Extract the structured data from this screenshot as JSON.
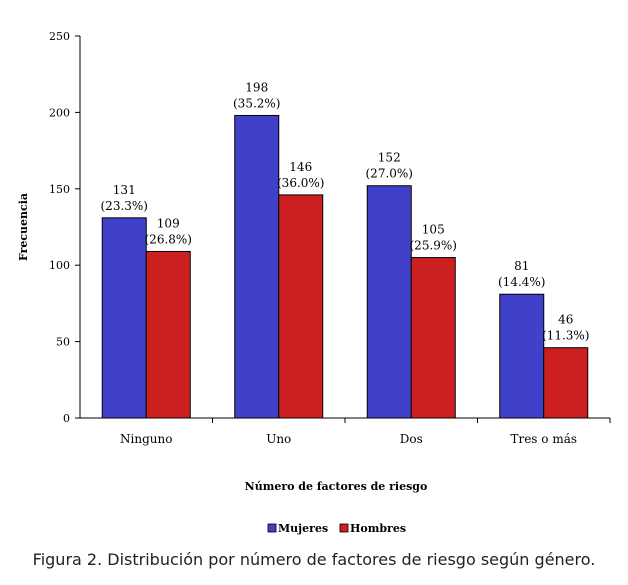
{
  "chart_data": {
    "type": "bar",
    "ylabel": "Frecuencia",
    "xlabel": "Número de factores de riesgo",
    "categories": [
      "Ninguno",
      "Uno",
      "Dos",
      "Tres o más"
    ],
    "ylim": [
      0,
      250
    ],
    "yticks": [
      0,
      50,
      100,
      150,
      200,
      250
    ],
    "grid": false,
    "legend_position": "bottom",
    "series": [
      {
        "name": "Mujeres",
        "color": "#4040c8",
        "values": [
          131,
          198,
          152,
          81
        ],
        "percent_labels": [
          "(23.3%)",
          "(35.2%)",
          "(27.0%)",
          "(14.4%)"
        ]
      },
      {
        "name": "Hombres",
        "color": "#cc2020",
        "values": [
          109,
          146,
          105,
          46
        ],
        "percent_labels": [
          "(26.8%)",
          "(36.0%)",
          "(25.9%)",
          "(11.3%)"
        ]
      }
    ]
  },
  "caption": "Figura 2. Distribución por número de factores de riesgo según género."
}
